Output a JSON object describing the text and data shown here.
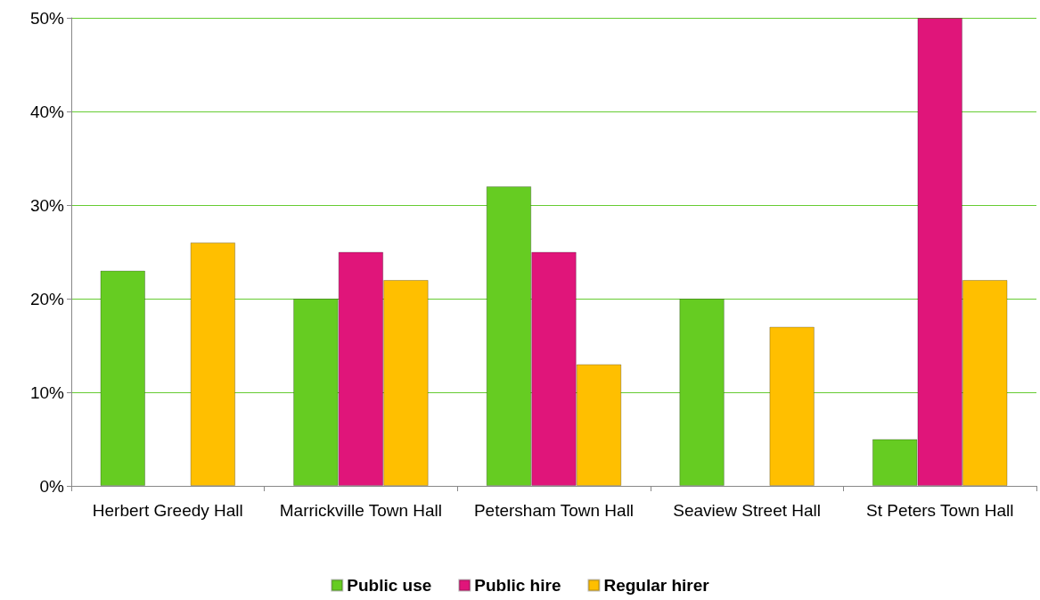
{
  "chart_data": {
    "type": "bar",
    "categories": [
      "Herbert Greedy Hall",
      "Marrickville Town Hall",
      "Petersham Town Hall",
      "Seaview Street Hall",
      "St Peters Town Hall"
    ],
    "series": [
      {
        "name": "Public use",
        "color": "#66cc22",
        "values": [
          23,
          20,
          32,
          20,
          5
        ]
      },
      {
        "name": "Public hire",
        "color": "#e0157a",
        "values": [
          null,
          25,
          25,
          null,
          50
        ]
      },
      {
        "name": "Regular hirer",
        "color": "#ffbf00",
        "values": [
          26,
          22,
          13,
          17,
          22
        ]
      }
    ],
    "ylim": [
      0,
      50
    ],
    "yticks": [
      {
        "value": 0,
        "label": "0%"
      },
      {
        "value": 10,
        "label": "10%"
      },
      {
        "value": 20,
        "label": "20%"
      },
      {
        "value": 30,
        "label": "30%"
      },
      {
        "value": 40,
        "label": "40%"
      },
      {
        "value": 50,
        "label": "50%"
      }
    ],
    "grid": "y",
    "legend": "bottom"
  }
}
